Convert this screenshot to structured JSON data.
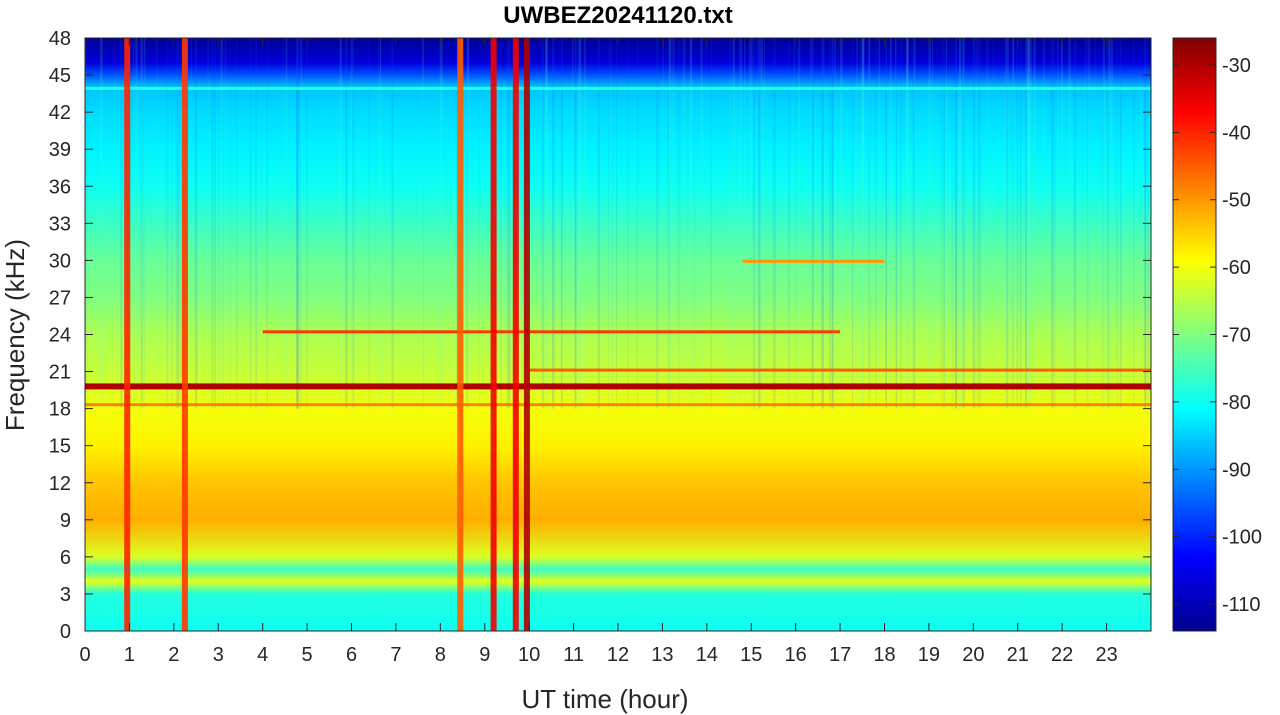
{
  "chart_data": {
    "type": "heatmap",
    "title": "UWBEZ20241120.txt",
    "xlabel": "UT time (hour)",
    "ylabel": "Frequency (kHz)",
    "xlim": [
      0,
      24
    ],
    "ylim": [
      0,
      48
    ],
    "x_ticks": [
      0,
      1,
      2,
      3,
      4,
      5,
      6,
      7,
      8,
      9,
      10,
      11,
      12,
      13,
      14,
      15,
      16,
      17,
      18,
      19,
      20,
      21,
      22,
      23
    ],
    "y_ticks": [
      0,
      3,
      6,
      9,
      12,
      15,
      18,
      21,
      24,
      27,
      30,
      33,
      36,
      39,
      42,
      45,
      48
    ],
    "colorbar": {
      "colormap": "jet",
      "clim": [
        -114,
        -26
      ],
      "ticks": [
        -30,
        -40,
        -50,
        -60,
        -70,
        -80,
        -90,
        -100,
        -110
      ]
    },
    "persistent_lines_khz": [
      {
        "freq": 19.8,
        "level": -30,
        "from_hour": 0,
        "to_hour": 24
      },
      {
        "freq": 18.2,
        "level": -48,
        "from_hour": 0,
        "to_hour": 24
      },
      {
        "freq": 24.1,
        "level": -42,
        "from_hour": 4,
        "to_hour": 17
      },
      {
        "freq": 21.0,
        "level": -45,
        "from_hour": 10,
        "to_hour": 24
      },
      {
        "freq": 29.8,
        "level": -50,
        "from_hour": 14.8,
        "to_hour": 18
      },
      {
        "freq": 43.8,
        "level": -78,
        "from_hour": 0,
        "to_hour": 24
      },
      {
        "freq": 4.0,
        "level": -62,
        "from_hour": 0,
        "to_hour": 24
      }
    ],
    "broadband_bursts_hour": [
      {
        "hour": 0.95,
        "level": -40
      },
      {
        "hour": 2.25,
        "level": -42
      },
      {
        "hour": 8.45,
        "level": -45
      },
      {
        "hour": 9.2,
        "level": -36
      },
      {
        "hour": 9.7,
        "level": -36
      },
      {
        "hour": 9.95,
        "level": -30
      }
    ]
  }
}
